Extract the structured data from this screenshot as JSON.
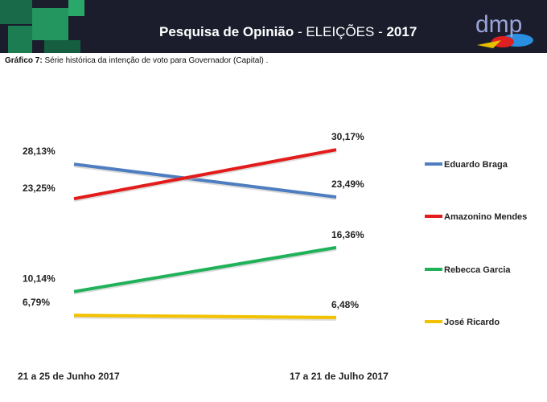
{
  "header": {
    "title_bold": "Pesquisa de Opinião",
    "title_rest": " - ELEIÇÕES - ",
    "year": "2017",
    "logo_text": "dmp"
  },
  "caption": {
    "label": "Gráfico 7:",
    "text": " Série histórica da intenção de voto para Governador (Capital) ."
  },
  "chart_data": {
    "type": "line",
    "title": "",
    "categories": [
      "21 a 25 de Junho 2017",
      "17 a 21 de Julho 2017"
    ],
    "legend_position": "right",
    "grid": false,
    "series": [
      {
        "name": "Eduardo Braga",
        "color": "#4f7ec0",
        "values": [
          28.13,
          23.49
        ],
        "labels": [
          "28,13%",
          "23,49%"
        ]
      },
      {
        "name": "Amazonino Mendes",
        "color": "#e31b1b",
        "values": [
          23.25,
          30.17
        ],
        "labels": [
          "23,25%",
          "30,17%"
        ]
      },
      {
        "name": "Rebecca Garcia",
        "color": "#20b25a",
        "values": [
          10.14,
          16.36
        ],
        "labels": [
          "10,14%",
          "16,36%"
        ]
      },
      {
        "name": "José Ricardo",
        "color": "#f2c200",
        "values": [
          6.79,
          6.48
        ],
        "labels": [
          "6,79%",
          "6,48%"
        ]
      }
    ]
  }
}
